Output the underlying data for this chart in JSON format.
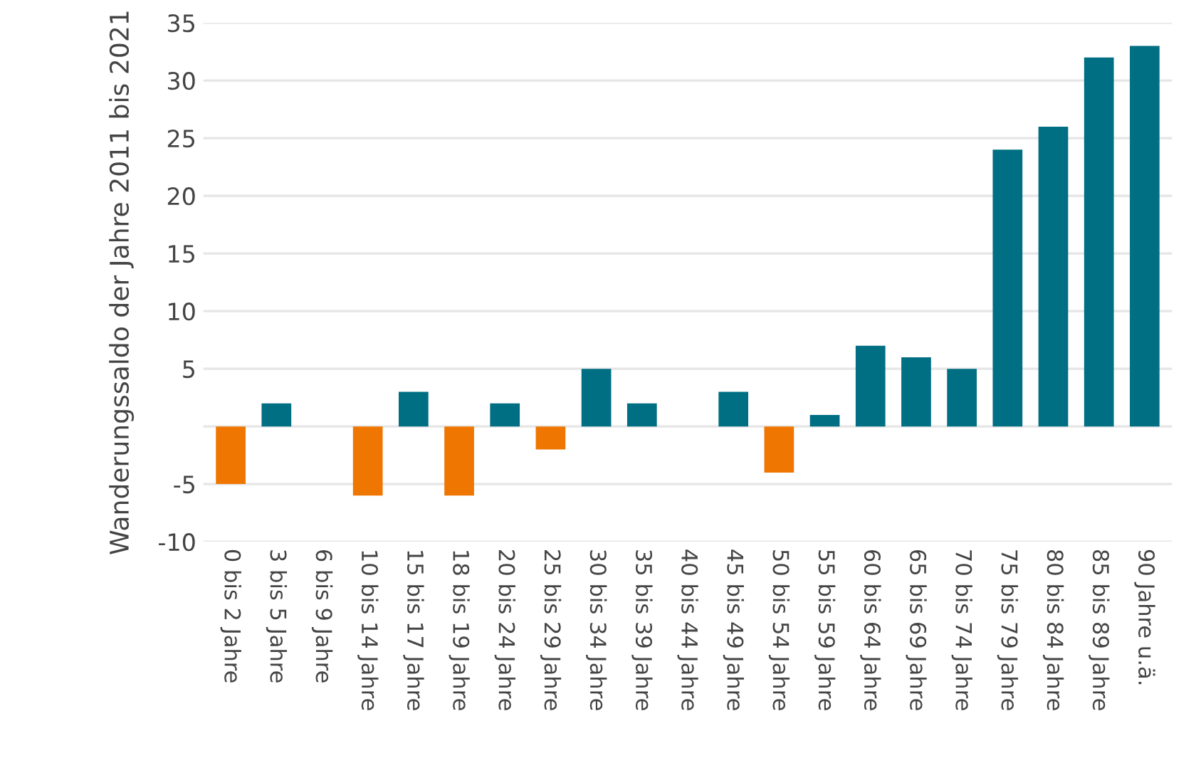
{
  "chart_data": {
    "type": "bar",
    "ylabel": "Wanderungssaldo der Jahre 2011 bis 2021",
    "categories": [
      "0 bis 2 Jahre",
      "3 bis 5 Jahre",
      "6 bis 9 Jahre",
      "10 bis 14 Jahre",
      "15 bis 17 Jahre",
      "18 bis 19 Jahre",
      "20 bis 24 Jahre",
      "25 bis 29 Jahre",
      "30 bis 34 Jahre",
      "35 bis 39 Jahre",
      "40 bis 44 Jahre",
      "45 bis 49 Jahre",
      "50 bis 54 Jahre",
      "55 bis 59 Jahre",
      "60 bis 64 Jahre",
      "65 bis 69 Jahre",
      "70 bis 74 Jahre",
      "75 bis 79 Jahre",
      "80 bis 84 Jahre",
      "85 bis 89 Jahre",
      "90 Jahre u.ä."
    ],
    "values": [
      -5,
      2,
      0,
      -6,
      3,
      -6,
      2,
      -2,
      5,
      2,
      0,
      3,
      -4,
      1,
      7,
      6,
      5,
      24,
      26,
      32,
      33
    ],
    "colors": [
      "#ee7601",
      "#006f83",
      "#006f83",
      "#ee7601",
      "#006f83",
      "#ee7601",
      "#006f83",
      "#ee7601",
      "#006f83",
      "#006f83",
      "#006f83",
      "#006f83",
      "#ee7601",
      "#006f83",
      "#006f83",
      "#006f83",
      "#006f83",
      "#006f83",
      "#006f83",
      "#006f83",
      "#006f83"
    ],
    "ylim": [
      -10,
      35
    ],
    "yticks": [
      -10,
      -5,
      {
        "value": 0,
        "label": null
      },
      5,
      10,
      15,
      20,
      25,
      30,
      35
    ],
    "grid": "y"
  }
}
